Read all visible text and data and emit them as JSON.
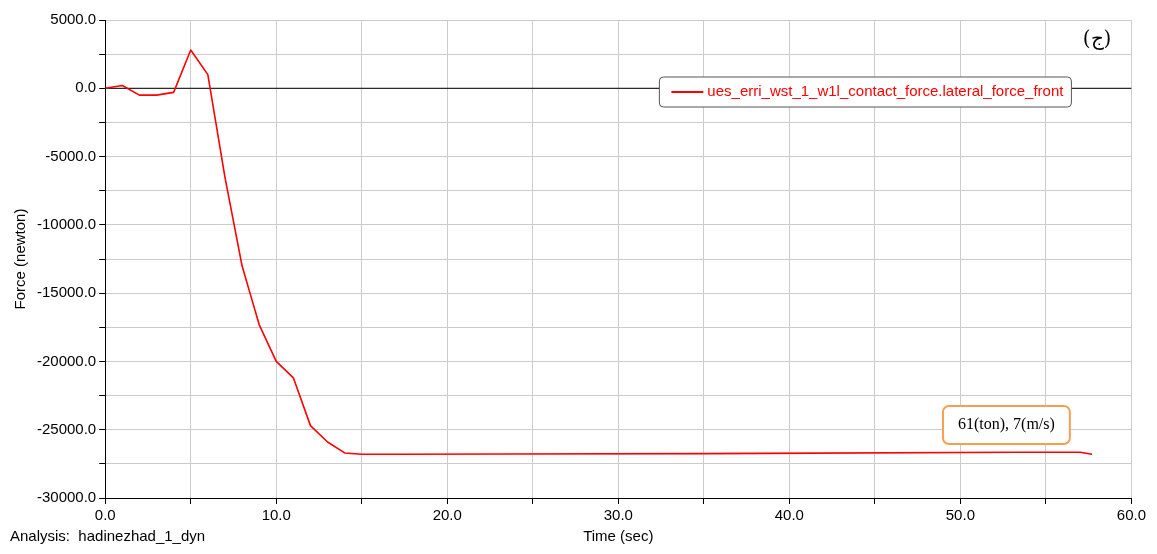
{
  "chart_data": {
    "type": "line",
    "xlabel": "Time (sec)",
    "ylabel": "Force (newton)",
    "x": [
      0,
      1,
      2,
      3,
      4,
      5,
      6,
      7,
      8,
      9,
      10,
      11,
      12,
      13,
      14,
      15,
      17,
      35,
      54,
      57,
      57.7
    ],
    "series": [
      {
        "name": "ues_erri_wst_1_w1l_contact_force.lateral_force_front",
        "color": "#ff0000",
        "values": [
          0,
          200,
          -500,
          -500,
          -300,
          2800,
          1000,
          -6500,
          -13000,
          -17300,
          -20000,
          -21200,
          -24700,
          -25900,
          -26700,
          -26800,
          -26800,
          -26750,
          -26650,
          -26650,
          -26800
        ]
      }
    ],
    "xlim": [
      0,
      60
    ],
    "xticks": [
      {
        "value": 0,
        "label": "0.0"
      },
      {
        "value": 5,
        "label": null
      },
      {
        "value": 10,
        "label": "10.0"
      },
      {
        "value": 15,
        "label": null
      },
      {
        "value": 20,
        "label": "20.0"
      },
      {
        "value": 25,
        "label": null
      },
      {
        "value": 30,
        "label": "30.0"
      },
      {
        "value": 35,
        "label": null
      },
      {
        "value": 40,
        "label": "40.0"
      },
      {
        "value": 45,
        "label": null
      },
      {
        "value": 50,
        "label": "50.0"
      },
      {
        "value": 55,
        "label": null
      },
      {
        "value": 60,
        "label": "60.0"
      }
    ],
    "ylim": [
      -30000,
      5000
    ],
    "yticks": [
      {
        "value": -30000,
        "label": "-30000.0"
      },
      {
        "value": -27500,
        "label": null
      },
      {
        "value": -25000,
        "label": "-25000.0"
      },
      {
        "value": -22500,
        "label": null
      },
      {
        "value": -20000,
        "label": "-20000.0"
      },
      {
        "value": -17500,
        "label": null
      },
      {
        "value": -15000,
        "label": "-15000.0"
      },
      {
        "value": -12500,
        "label": null
      },
      {
        "value": -10000,
        "label": "-10000.0"
      },
      {
        "value": -7500,
        "label": null
      },
      {
        "value": -5000,
        "label": "-5000.0"
      },
      {
        "value": -2500,
        "label": null
      },
      {
        "value": 0,
        "label": "0.0"
      },
      {
        "value": 2500,
        "label": null
      },
      {
        "value": 5000,
        "label": "5000.0"
      }
    ],
    "grid": true,
    "legend": "top right",
    "marker": "none",
    "line_style": "solid",
    "ref_lines": [
      {
        "axis": "y",
        "value": 0,
        "color": "#000000"
      }
    ],
    "annotations": [
      "(ج)",
      "61(ton), 7(m/s)",
      "Analysis:  hadinezhad_1_dyn"
    ]
  }
}
